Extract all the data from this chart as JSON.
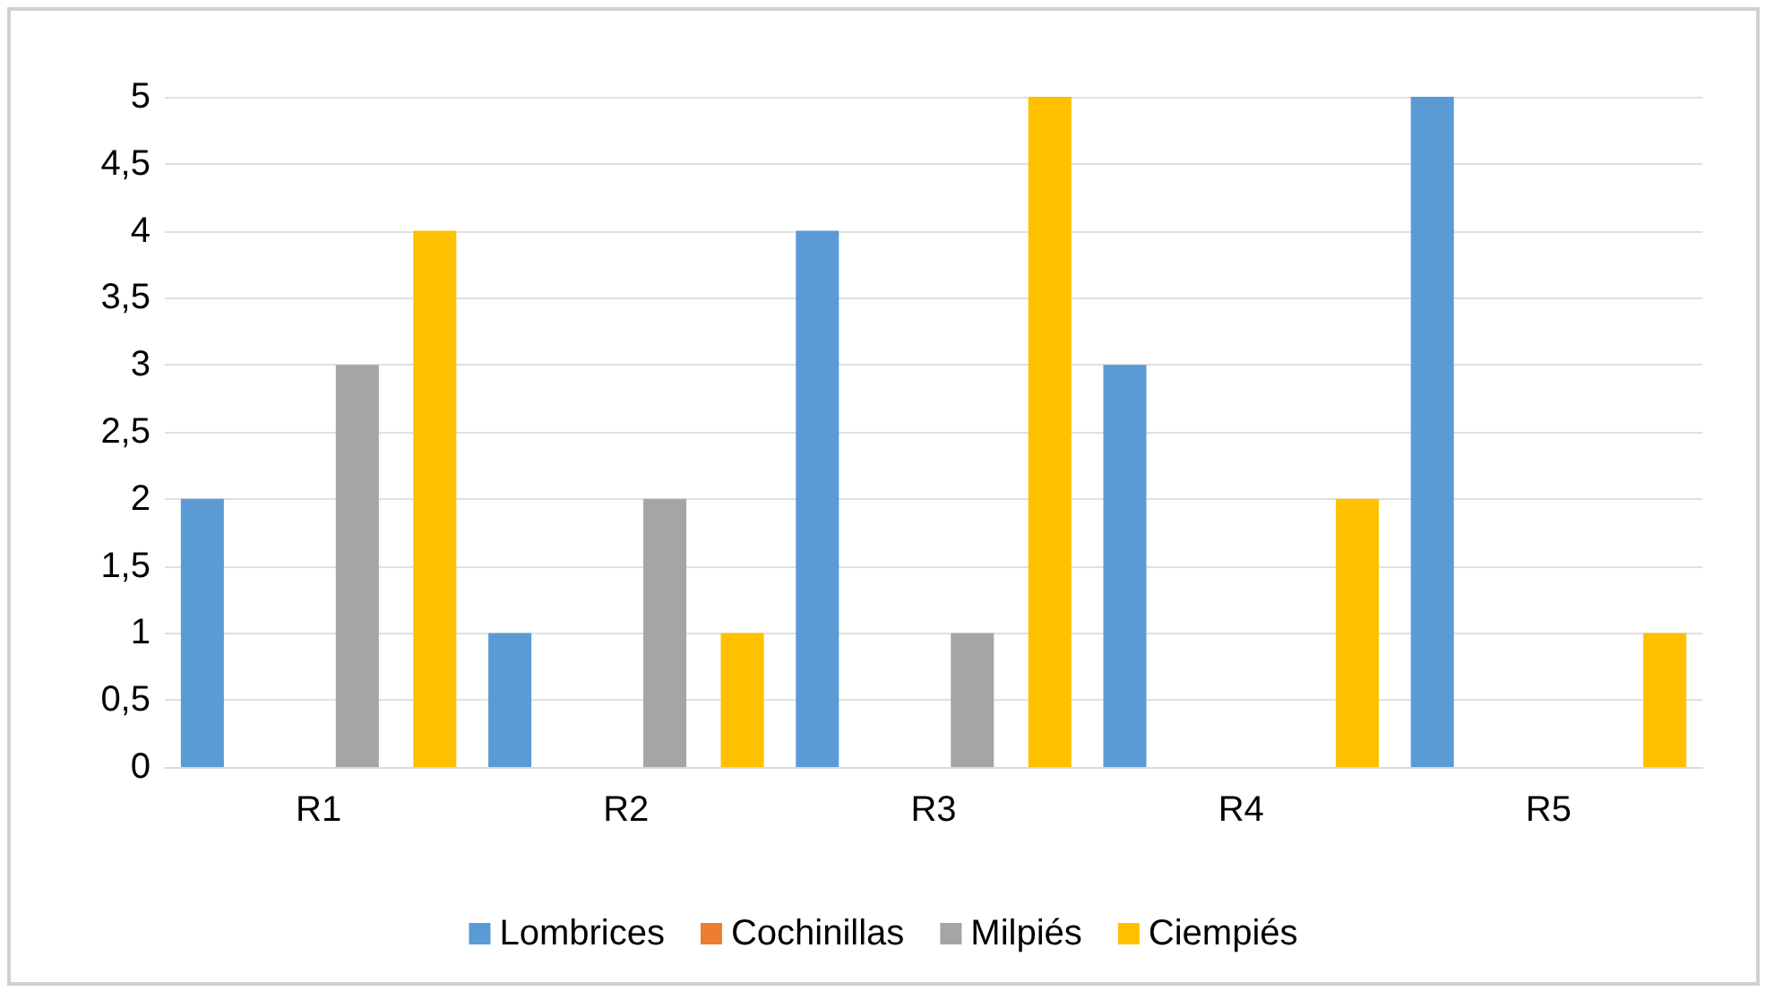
{
  "chart_data": {
    "type": "bar",
    "categories": [
      "R1",
      "R2",
      "R3",
      "R4",
      "R5"
    ],
    "series": [
      {
        "name": "Lombrices",
        "color": "#5b9bd5",
        "values": [
          2,
          1,
          4,
          3,
          5
        ]
      },
      {
        "name": "Cochinillas",
        "color": "#ed7d31",
        "values": [
          0,
          0,
          0,
          0,
          0
        ]
      },
      {
        "name": "Milpiés",
        "color": "#a5a5a5",
        "values": [
          3,
          2,
          1,
          0,
          0
        ]
      },
      {
        "name": "Ciempiés",
        "color": "#ffc000",
        "values": [
          4,
          1,
          5,
          2,
          1
        ]
      }
    ],
    "ylim": [
      0,
      5
    ],
    "yticks": [
      0,
      {
        "value": 0.5,
        "label": "0,5"
      },
      1,
      {
        "value": 1.5,
        "label": "1,5"
      },
      2,
      {
        "value": 2.5,
        "label": "2,5"
      },
      3,
      {
        "value": 3.5,
        "label": "3,5"
      },
      4,
      {
        "value": 4.5,
        "label": "4,5"
      },
      5
    ],
    "grid": "y",
    "legend": "bottom"
  }
}
